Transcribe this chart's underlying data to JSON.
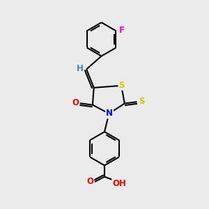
{
  "bg_color": "#ebebeb",
  "line_color": "#000000",
  "bond_width": 1.5,
  "atom_colors": {
    "S": "#cccc00",
    "N": "#0000ee",
    "O": "#ff0000",
    "F": "#ff00cc",
    "H": "#4488aa",
    "C": "#000000"
  },
  "figsize": [
    3.0,
    3.0
  ],
  "dpi": 100
}
